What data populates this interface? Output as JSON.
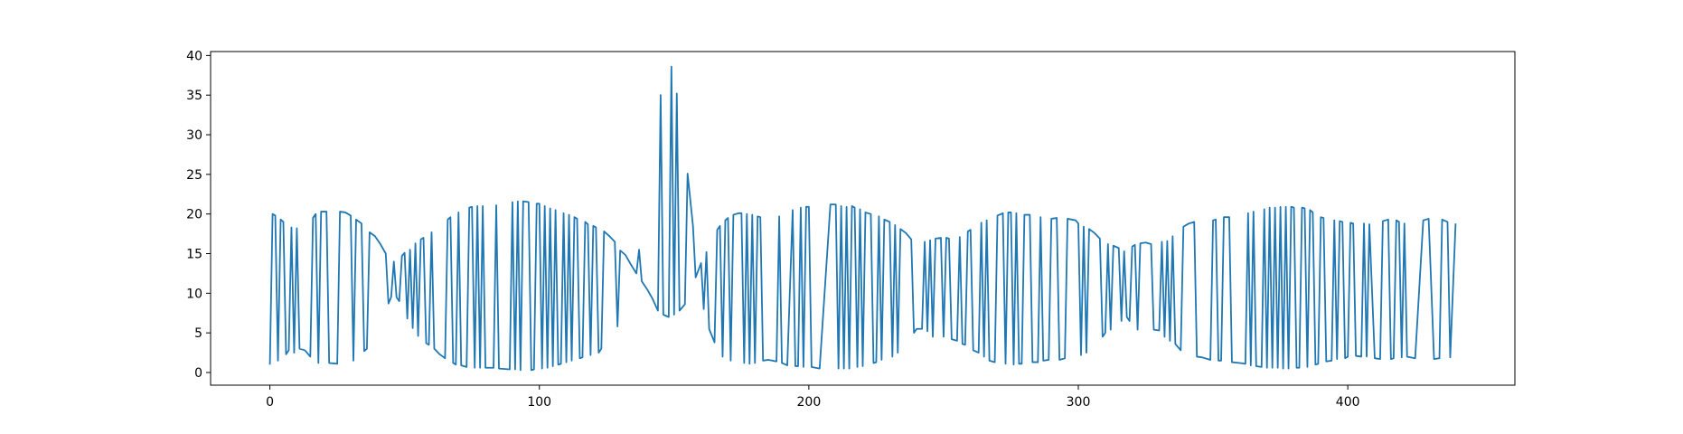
{
  "chart_data": {
    "type": "line",
    "color": "#1f77b4",
    "x": [
      0,
      1,
      2,
      3,
      4,
      5,
      6,
      7,
      8,
      9,
      10,
      11,
      13,
      15,
      16,
      17,
      18,
      19,
      21,
      22,
      25,
      26,
      28,
      30,
      31,
      32,
      34,
      35,
      36,
      37,
      39,
      41,
      43,
      44,
      45,
      46,
      47,
      48,
      49,
      50,
      51,
      52,
      53,
      54,
      55,
      56,
      57,
      58,
      59,
      60,
      61,
      63,
      65,
      66,
      67,
      68,
      69,
      70,
      71,
      73,
      74,
      75,
      76,
      77,
      78,
      79,
      80,
      83,
      84,
      85,
      89,
      90,
      91,
      92,
      93,
      94,
      96,
      97,
      98,
      99,
      100,
      101,
      102,
      103,
      104,
      105,
      106,
      107,
      108,
      109,
      110,
      111,
      112,
      113,
      114,
      115,
      116,
      117,
      118,
      119,
      120,
      121,
      122,
      123,
      124,
      126,
      128,
      129,
      130,
      132,
      134,
      136,
      137,
      138,
      140,
      142,
      144,
      145,
      146,
      148,
      149,
      150,
      151,
      152,
      154,
      155,
      157,
      158,
      160,
      161,
      162,
      163,
      165,
      166,
      167,
      168,
      169,
      170,
      171,
      172,
      174,
      175,
      176,
      177,
      178,
      179,
      180,
      181,
      182,
      183,
      185,
      188,
      189,
      190,
      192,
      194,
      195,
      196,
      197,
      198,
      199,
      200,
      201,
      204,
      208,
      210,
      211,
      212,
      213,
      214,
      215,
      216,
      217,
      218,
      219,
      220,
      221,
      223,
      224,
      225,
      226,
      227,
      228,
      230,
      231,
      232,
      233,
      234,
      236,
      238,
      239,
      240,
      242,
      243,
      244,
      245,
      246,
      247,
      249,
      250,
      251,
      252,
      253,
      255,
      256,
      257,
      258,
      259,
      260,
      261,
      263,
      264,
      265,
      266,
      267,
      269,
      270,
      272,
      273,
      274,
      275,
      276,
      277,
      278,
      279,
      280,
      282,
      283,
      285,
      286,
      287,
      289,
      290,
      292,
      293,
      295,
      296,
      299,
      300,
      301,
      302,
      303,
      304,
      306,
      308,
      309,
      310,
      311,
      312,
      313,
      315,
      316,
      317,
      318,
      319,
      320,
      321,
      322,
      323,
      325,
      327,
      328,
      330,
      331,
      332,
      333,
      334,
      335,
      336,
      338,
      339,
      341,
      343,
      344,
      346,
      349,
      350,
      351,
      352,
      353,
      354,
      356,
      357,
      360,
      362,
      363,
      364,
      365,
      366,
      368,
      369,
      370,
      371,
      372,
      373,
      374,
      375,
      376,
      377,
      378,
      379,
      380,
      381,
      382,
      383,
      384,
      385,
      386,
      387,
      388,
      389,
      390,
      391,
      392,
      394,
      395,
      396,
      397,
      398,
      399,
      400,
      401,
      402,
      403,
      405,
      406,
      407,
      408,
      410,
      412,
      413,
      415,
      416,
      417,
      418,
      419,
      420,
      421,
      422,
      425,
      428,
      430,
      432,
      434,
      435,
      437,
      438,
      440
    ],
    "values": [
      1,
      20,
      19.8,
      1.5,
      19.3,
      19,
      2.3,
      2.8,
      18.3,
      2.5,
      18.2,
      3,
      2.8,
      2,
      19.5,
      20,
      1.2,
      20.3,
      20.3,
      1.2,
      1.1,
      20.3,
      20.2,
      19.8,
      1.5,
      19.3,
      18.8,
      2.7,
      3,
      17.7,
      17.2,
      16.2,
      15,
      8.7,
      9.5,
      14,
      9.5,
      9,
      14.7,
      15.1,
      6.8,
      15.5,
      5.6,
      16.3,
      4.6,
      16.8,
      17,
      3.7,
      3.5,
      17.7,
      3,
      2.3,
      1.8,
      19.3,
      19.6,
      1.2,
      1,
      20.2,
      0.9,
      0.7,
      20.8,
      20.9,
      0.6,
      21,
      0.6,
      21,
      0.6,
      0.6,
      21.1,
      0.5,
      0.4,
      21.5,
      0.4,
      21.6,
      0.3,
      21.6,
      21.5,
      0.3,
      0.4,
      21.3,
      21.3,
      0.5,
      21,
      0.6,
      20.7,
      0.8,
      20.5,
      1,
      1.1,
      20.1,
      1.3,
      19.9,
      1.5,
      19.6,
      19.4,
      1.8,
      1.9,
      19,
      18.7,
      2.2,
      18.5,
      18.3,
      2.5,
      3,
      17.8,
      17.2,
      16.5,
      5.8,
      15.4,
      14.8,
      13.6,
      12.5,
      15.5,
      11.5,
      10.5,
      9.3,
      7.8,
      35,
      7.3,
      7,
      38.6,
      7.3,
      35.2,
      7.8,
      8.6,
      25.1,
      18.5,
      12,
      13.8,
      8,
      15.2,
      5.5,
      3.8,
      18,
      18.5,
      2,
      19.2,
      19.5,
      1.5,
      19.9,
      20.1,
      20.1,
      1.2,
      20,
      1.1,
      19.9,
      1.2,
      19.7,
      19.6,
      1.5,
      1.6,
      1.4,
      19.7,
      1.2,
      0.9,
      20.5,
      0.8,
      0.8,
      20.8,
      0.7,
      20.9,
      20.9,
      0.7,
      0.5,
      21.2,
      21.2,
      0.5,
      21,
      0.5,
      20.9,
      0.5,
      21,
      20.8,
      0.7,
      20.6,
      0.8,
      20.2,
      20,
      1.2,
      1.3,
      19.7,
      1.6,
      19.3,
      19,
      2,
      18.6,
      2.5,
      18.1,
      17.6,
      16.8,
      5,
      5.5,
      5.5,
      16.5,
      5.2,
      16.7,
      4.5,
      16.9,
      17,
      4.5,
      17,
      16.9,
      4.2,
      4,
      17.1,
      3.6,
      3.5,
      17.8,
      18,
      2.8,
      2.5,
      18.9,
      2,
      19.2,
      1.5,
      1.3,
      19.8,
      20.1,
      1.1,
      20.2,
      20.2,
      1,
      20.1,
      1.1,
      1.1,
      19.9,
      19.9,
      1.3,
      1.3,
      19.6,
      1.5,
      1.6,
      19.4,
      19.5,
      1.6,
      1.8,
      19.4,
      19.2,
      18.8,
      2.2,
      18.4,
      2.5,
      18.1,
      17.6,
      16.9,
      4.5,
      5,
      16.2,
      5.4,
      16,
      15.7,
      6.5,
      15.3,
      7,
      6.5,
      15.9,
      16.1,
      5.4,
      16.3,
      16.4,
      16.2,
      5.4,
      5.3,
      16.5,
      4.5,
      16.6,
      4,
      17.2,
      3.6,
      2.8,
      18.4,
      18.8,
      19,
      2,
      1.9,
      1.6,
      19.2,
      19.3,
      1.5,
      1.5,
      19.6,
      19.6,
      1.3,
      1.2,
      1.1,
      20.1,
      0.9,
      20.3,
      0.8,
      0.7,
      20.6,
      0.6,
      20.8,
      0.6,
      20.8,
      0.6,
      20.9,
      0.5,
      20.9,
      0.5,
      20.9,
      20.8,
      0.6,
      0.6,
      20.8,
      20.7,
      0.7,
      20.5,
      20.2,
      1,
      1.1,
      19.6,
      19.5,
      1.4,
      1.5,
      19.2,
      1.7,
      19.1,
      19,
      1.8,
      2,
      18.9,
      18.8,
      2.1,
      2,
      18.8,
      2,
      18.7,
      1.8,
      1.7,
      19.1,
      19.3,
      1.7,
      1.8,
      19.2,
      19,
      1.9,
      18.8,
      2,
      1.8,
      19.2,
      19.4,
      1.7,
      1.8,
      19.3,
      19,
      1.9,
      18.8
    ],
    "xlim": [
      -22,
      462
    ],
    "ylim": [
      -1.6,
      40.5
    ],
    "xticks": [
      0,
      100,
      200,
      300,
      400
    ],
    "yticks": [
      0,
      5,
      10,
      15,
      20,
      25,
      30,
      35,
      40
    ]
  }
}
